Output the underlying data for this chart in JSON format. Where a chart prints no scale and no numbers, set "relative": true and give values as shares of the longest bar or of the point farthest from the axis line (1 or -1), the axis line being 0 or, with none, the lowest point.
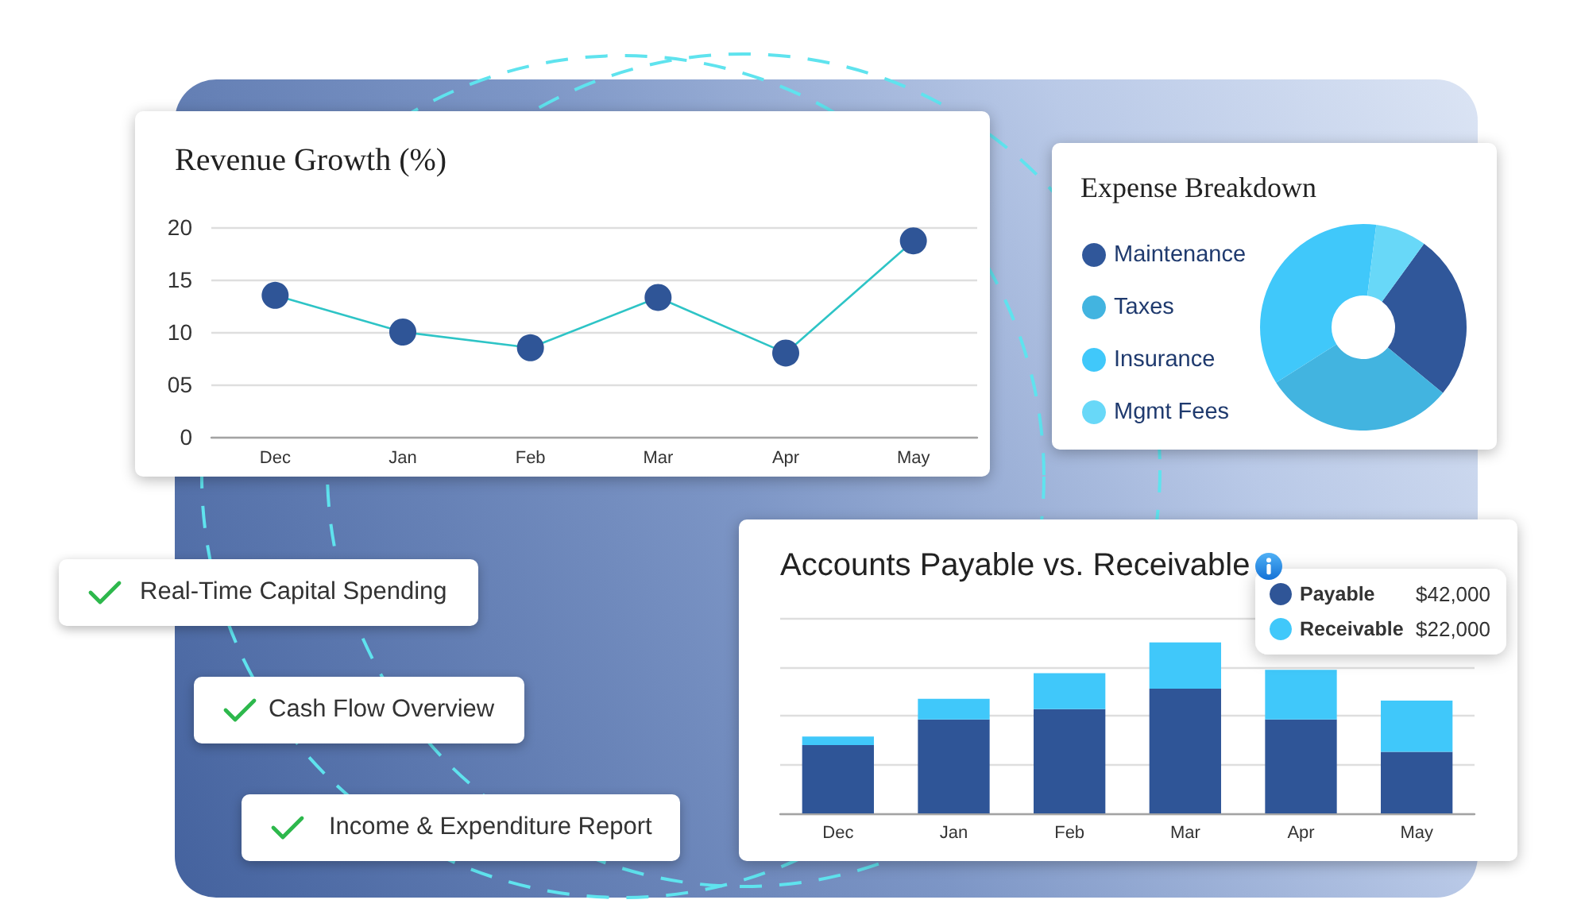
{
  "chart_data": [
    {
      "type": "line",
      "title": "Revenue Growth (%)",
      "categories": [
        "Dec",
        "Jan",
        "Feb",
        "Mar",
        "Apr",
        "May"
      ],
      "series": [
        {
          "color": "#2ec4c6",
          "values": [
            13.5,
            10,
            8.5,
            13.3,
            8,
            18.7
          ]
        }
      ],
      "ylim": [
        0,
        20
      ],
      "yticks": [
        0,
        {
          "value": 5,
          "label": "05"
        },
        10,
        15,
        20
      ],
      "grid": "y",
      "marker": "circle",
      "line_style": "solid"
    },
    {
      "type": "donut",
      "title": "Expense Breakdown",
      "categories": [
        "Maintenance",
        "Taxes",
        "Insurance",
        "Mgmt Fees"
      ],
      "values": [
        26,
        30,
        36,
        8
      ],
      "colors": [
        "#30579a",
        "#42b4e0",
        "#40c8fa",
        "#68d8f8"
      ],
      "legend": "left"
    },
    {
      "type": "bar",
      "title": "Accounts Payable vs. Receivable",
      "categories": [
        "Dec",
        "Jan",
        "Feb",
        "Mar",
        "Apr",
        "May"
      ],
      "stacked": true,
      "relative": true,
      "series": [
        {
          "name": "Payable",
          "color": "#2f5597",
          "values": [
            0.4,
            0.55,
            0.61,
            0.73,
            0.55,
            0.36
          ]
        },
        {
          "name": "Receivable",
          "color": "#40c8fa",
          "values": [
            0.05,
            0.12,
            0.21,
            0.27,
            0.29,
            0.3
          ]
        }
      ],
      "grid": "y",
      "tick_labels": "x",
      "legend": "top right",
      "annotations": [
        "$42,000",
        "$22,000"
      ]
    },
    {
      "type": "other",
      "annotations": [
        "Real-Time Capital Spending",
        "Cash Flow Overview",
        "Income & Expenditure Report"
      ]
    }
  ]
}
